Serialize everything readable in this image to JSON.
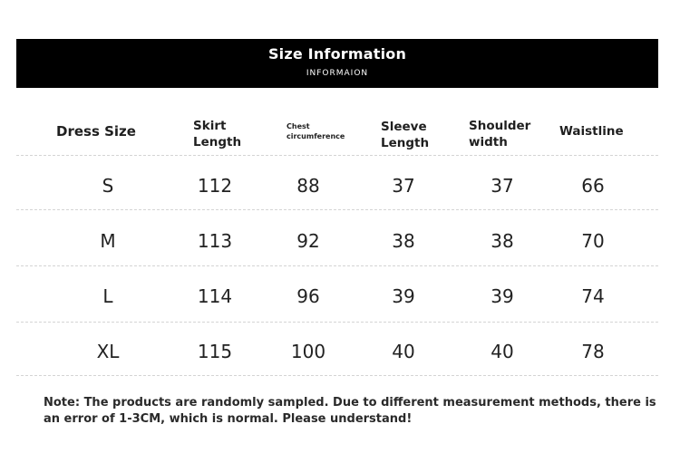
{
  "banner": {
    "title": "Size Information",
    "subtitle": "INFORMAION"
  },
  "table": {
    "headers": {
      "dress_size": "Dress Size",
      "skirt_length": "Skirt Length",
      "chest": "Chest circumference",
      "sleeve_length": "Sleeve Length",
      "shoulder_width": "Shoulder width",
      "waistline": "Waistline"
    },
    "rows": [
      {
        "size": "S",
        "skirt": "112",
        "chest": "88",
        "sleeve": "37",
        "shoulder": "37",
        "waist": "66"
      },
      {
        "size": "M",
        "skirt": "113",
        "chest": "92",
        "sleeve": "38",
        "shoulder": "38",
        "waist": "70"
      },
      {
        "size": "L",
        "skirt": "114",
        "chest": "96",
        "sleeve": "39",
        "shoulder": "39",
        "waist": "74"
      },
      {
        "size": "XL",
        "skirt": "115",
        "chest": "100",
        "sleeve": "40",
        "shoulder": "40",
        "waist": "78"
      }
    ]
  },
  "note": "Note: The products are randomly sampled. Due to different measurement methods, there is an error of 1-3CM, which is normal. Please understand!"
}
